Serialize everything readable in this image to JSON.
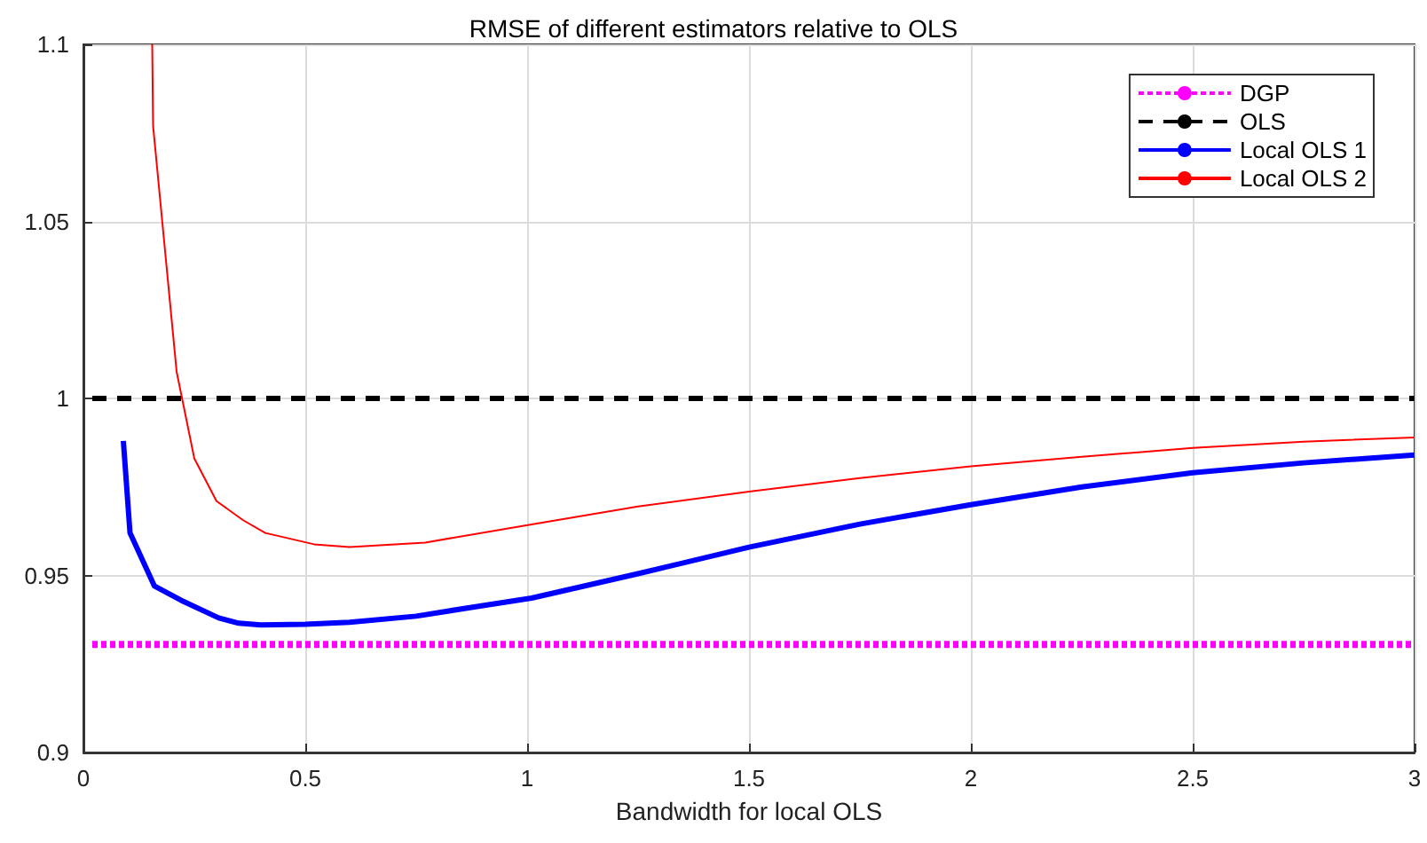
{
  "chart_data": {
    "type": "line",
    "title": "RMSE of different estimators relative to OLS",
    "xlabel": "Bandwidth for local OLS",
    "xlim": [
      0,
      3
    ],
    "xticks": [
      0,
      0.5,
      1,
      1.5,
      2,
      2.5,
      3
    ],
    "ylim": [
      0.9,
      1.1
    ],
    "yticks": [
      0.9,
      0.95,
      1,
      1.05,
      1.1
    ],
    "grid": true,
    "legend": "top right",
    "marker": "none",
    "series": [
      {
        "name": "DGP",
        "color": "#ff00ff",
        "line_style": "dotted",
        "x": [
          0.02,
          3
        ],
        "values": [
          0.9305,
          0.9305
        ]
      },
      {
        "name": "OLS",
        "color": "#000000",
        "line_style": "dashed",
        "x": [
          0.02,
          3
        ],
        "values": [
          1,
          1
        ]
      },
      {
        "name": "Local OLS 1",
        "color": "#0000ff",
        "line_style": "solid",
        "x": [
          0.09,
          0.105,
          0.16,
          0.22,
          0.305,
          0.35,
          0.4,
          0.5,
          0.6,
          0.75,
          0.9,
          1.01,
          1.25,
          1.5,
          1.75,
          2,
          2.25,
          2.5,
          2.75,
          3
        ],
        "values": [
          0.988,
          0.962,
          0.947,
          0.943,
          0.938,
          0.9365,
          0.936,
          0.9362,
          0.9368,
          0.9385,
          0.9415,
          0.9436,
          0.9505,
          0.958,
          0.9645,
          0.97,
          0.975,
          0.979,
          0.9818,
          0.984
        ]
      },
      {
        "name": "Local OLS 2",
        "color": "#ff0000",
        "line_style": "solid",
        "x": [
          0.155,
          0.157,
          0.21,
          0.25,
          0.3,
          0.36,
          0.41,
          0.52,
          0.6,
          0.77,
          1.01,
          1.25,
          1.5,
          1.75,
          2,
          2.25,
          2.5,
          2.75,
          3
        ],
        "values": [
          1.1,
          1.077,
          1.0076,
          0.983,
          0.971,
          0.9656,
          0.962,
          0.9588,
          0.958,
          0.9593,
          0.9644,
          0.9695,
          0.9737,
          0.9775,
          0.9808,
          0.9835,
          0.986,
          0.9878,
          0.989
        ]
      }
    ]
  }
}
